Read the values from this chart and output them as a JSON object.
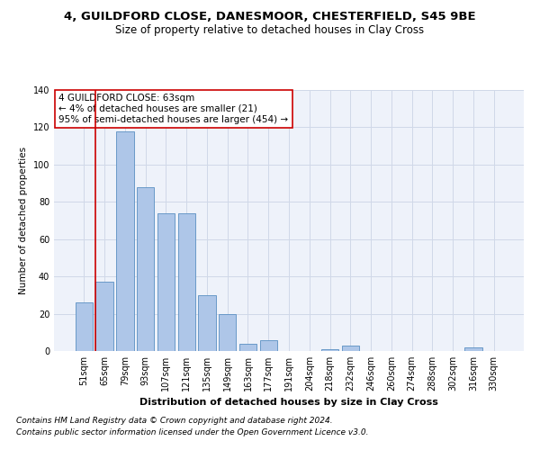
{
  "title1": "4, GUILDFORD CLOSE, DANESMOOR, CHESTERFIELD, S45 9BE",
  "title2": "Size of property relative to detached houses in Clay Cross",
  "xlabel": "Distribution of detached houses by size in Clay Cross",
  "ylabel": "Number of detached properties",
  "categories": [
    "51sqm",
    "65sqm",
    "79sqm",
    "93sqm",
    "107sqm",
    "121sqm",
    "135sqm",
    "149sqm",
    "163sqm",
    "177sqm",
    "191sqm",
    "204sqm",
    "218sqm",
    "232sqm",
    "246sqm",
    "260sqm",
    "274sqm",
    "288sqm",
    "302sqm",
    "316sqm",
    "330sqm"
  ],
  "values": [
    26,
    37,
    118,
    88,
    74,
    74,
    30,
    20,
    4,
    6,
    0,
    0,
    1,
    3,
    0,
    0,
    0,
    0,
    0,
    2,
    0
  ],
  "bar_color": "#aec6e8",
  "bar_edge_color": "#5a8fc2",
  "vline_color": "#cc0000",
  "annotation_text": "4 GUILDFORD CLOSE: 63sqm\n← 4% of detached houses are smaller (21)\n95% of semi-detached houses are larger (454) →",
  "annotation_box_color": "#ffffff",
  "annotation_box_edge_color": "#cc0000",
  "footer1": "Contains HM Land Registry data © Crown copyright and database right 2024.",
  "footer2": "Contains public sector information licensed under the Open Government Licence v3.0.",
  "ylim": [
    0,
    140
  ],
  "yticks": [
    0,
    20,
    40,
    60,
    80,
    100,
    120,
    140
  ],
  "grid_color": "#d0d8e8",
  "bg_color": "#eef2fa",
  "title1_fontsize": 9.5,
  "title2_fontsize": 8.5,
  "xlabel_fontsize": 8,
  "ylabel_fontsize": 7.5,
  "tick_fontsize": 7,
  "annotation_fontsize": 7.5,
  "footer_fontsize": 6.5
}
